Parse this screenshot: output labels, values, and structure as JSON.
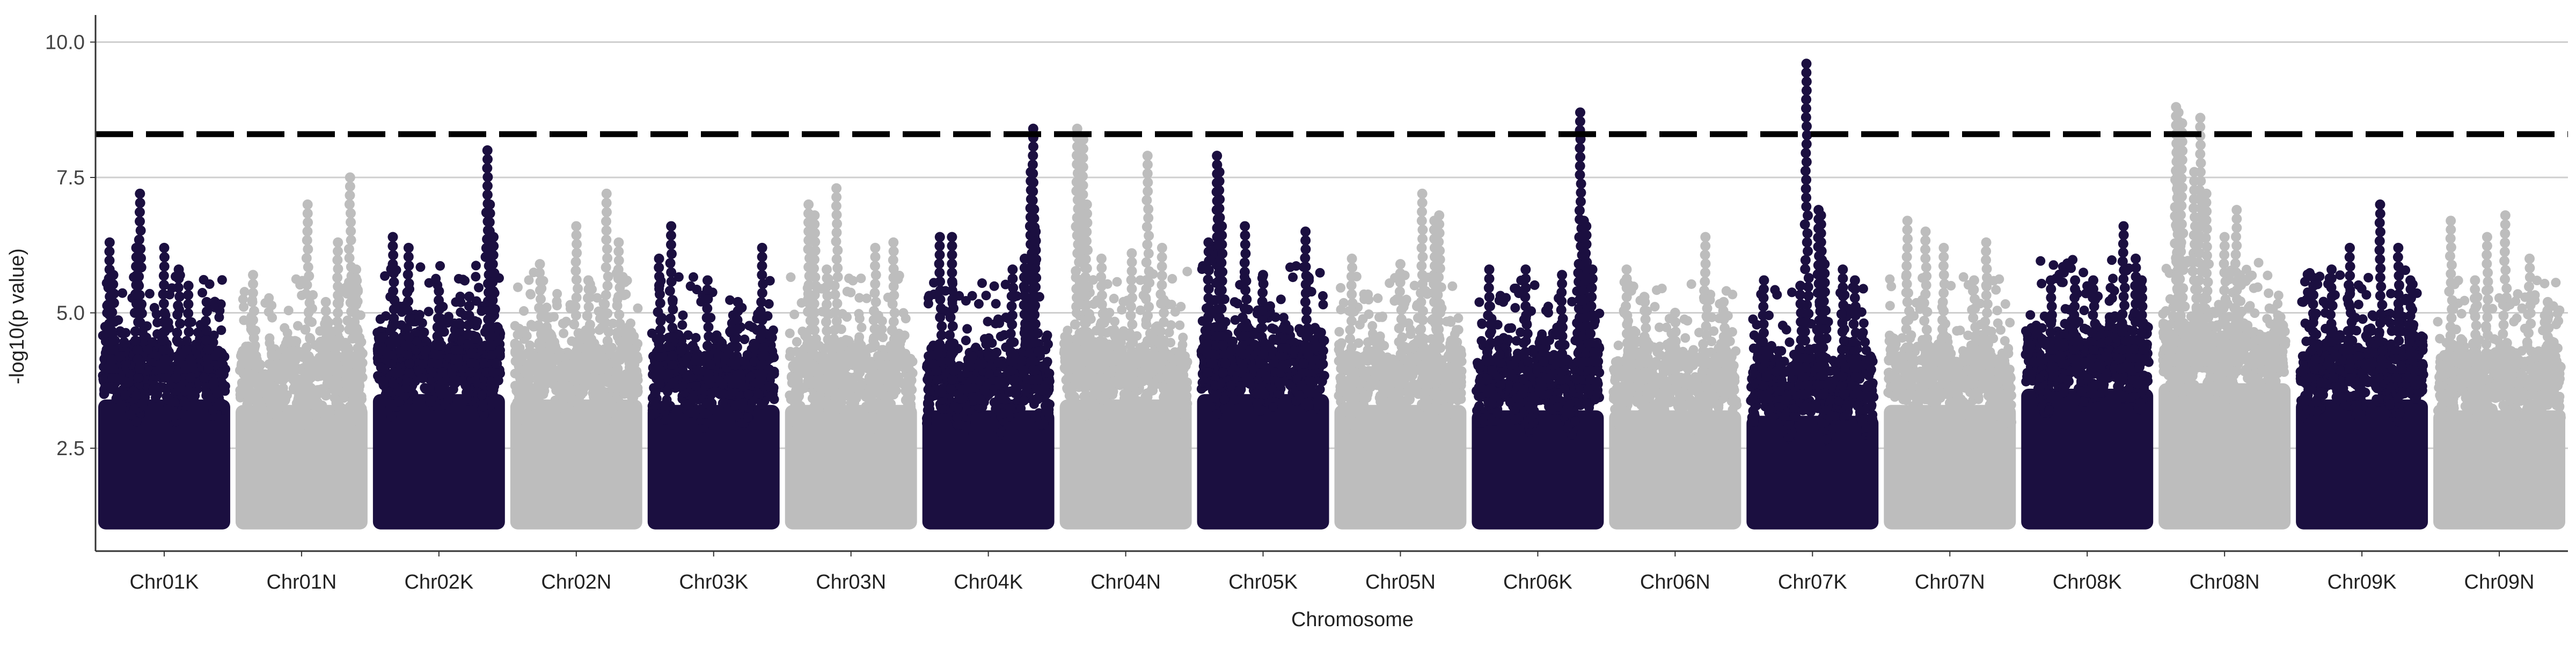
{
  "chart_data": {
    "type": "scatter",
    "title": "",
    "xlabel": "Chromosome",
    "ylabel": "-log10(p value)",
    "ylim": [
      0.6,
      10.5
    ],
    "yticks": [
      2.5,
      5.0,
      7.5,
      10.0
    ],
    "ytick_labels": [
      "2.5",
      "5.0",
      "7.5",
      "10.0"
    ],
    "grid": "horizontal-major",
    "legend": "none",
    "threshold": {
      "value": 8.3,
      "style": "dashed",
      "color": "#000000"
    },
    "colors": {
      "odd": "#1b0f40",
      "even": "#bdbdbd",
      "grid": "#cfcfcf",
      "axis": "#333333"
    },
    "categories": [
      "Chr01K",
      "Chr01N",
      "Chr02K",
      "Chr02N",
      "Chr03K",
      "Chr03N",
      "Chr04K",
      "Chr04N",
      "Chr05K",
      "Chr05N",
      "Chr06K",
      "Chr06N",
      "Chr07K",
      "Chr07N",
      "Chr08K",
      "Chr08N",
      "Chr09K",
      "Chr09N"
    ],
    "series": [
      {
        "chrom": "Chr01K",
        "color": "#1b0f40",
        "base_top": 3.8,
        "peaks": [
          [
            0.05,
            6.3
          ],
          [
            0.08,
            5.7
          ],
          [
            0.3,
            7.2
          ],
          [
            0.27,
            6.2
          ],
          [
            0.5,
            6.2
          ],
          [
            0.62,
            5.8
          ],
          [
            0.7,
            5.5
          ],
          [
            0.85,
            5.2
          ]
        ]
      },
      {
        "chrom": "Chr01N",
        "color": "#bdbdbd",
        "base_top": 3.7,
        "peaks": [
          [
            0.1,
            5.7
          ],
          [
            0.55,
            7.0
          ],
          [
            0.8,
            6.3
          ],
          [
            0.9,
            7.5
          ],
          [
            0.95,
            5.8
          ],
          [
            0.7,
            5.2
          ]
        ]
      },
      {
        "chrom": "Chr02K",
        "color": "#1b0f40",
        "base_top": 3.9,
        "peaks": [
          [
            0.12,
            6.4
          ],
          [
            0.25,
            6.2
          ],
          [
            0.5,
            5.4
          ],
          [
            0.75,
            5.3
          ],
          [
            0.9,
            8.0
          ],
          [
            0.92,
            7.0
          ],
          [
            0.95,
            6.4
          ]
        ]
      },
      {
        "chrom": "Chr02N",
        "color": "#bdbdbd",
        "base_top": 3.8,
        "peaks": [
          [
            0.2,
            5.9
          ],
          [
            0.5,
            6.6
          ],
          [
            0.75,
            7.2
          ],
          [
            0.85,
            6.3
          ],
          [
            0.6,
            5.6
          ]
        ]
      },
      {
        "chrom": "Chr03K",
        "color": "#1b0f40",
        "base_top": 3.7,
        "peaks": [
          [
            0.05,
            6.0
          ],
          [
            0.15,
            6.6
          ],
          [
            0.45,
            5.6
          ],
          [
            0.7,
            5.2
          ],
          [
            0.9,
            6.2
          ]
        ]
      },
      {
        "chrom": "Chr03N",
        "color": "#bdbdbd",
        "base_top": 3.7,
        "peaks": [
          [
            0.15,
            7.0
          ],
          [
            0.2,
            6.8
          ],
          [
            0.3,
            5.8
          ],
          [
            0.38,
            7.3
          ],
          [
            0.7,
            6.2
          ],
          [
            0.85,
            6.3
          ]
        ]
      },
      {
        "chrom": "Chr04K",
        "color": "#1b0f40",
        "base_top": 3.6,
        "peaks": [
          [
            0.1,
            6.4
          ],
          [
            0.2,
            6.4
          ],
          [
            0.7,
            5.8
          ],
          [
            0.8,
            6.0
          ],
          [
            0.85,
            7.6
          ],
          [
            0.87,
            8.4
          ],
          [
            0.89,
            6.5
          ]
        ]
      },
      {
        "chrom": "Chr04N",
        "color": "#bdbdbd",
        "base_top": 3.8,
        "peaks": [
          [
            0.1,
            8.4
          ],
          [
            0.15,
            8.2
          ],
          [
            0.18,
            7.0
          ],
          [
            0.3,
            6.0
          ],
          [
            0.55,
            6.1
          ],
          [
            0.68,
            7.9
          ],
          [
            0.8,
            6.2
          ]
        ]
      },
      {
        "chrom": "Chr05K",
        "color": "#1b0f40",
        "base_top": 3.9,
        "peaks": [
          [
            0.05,
            6.3
          ],
          [
            0.12,
            7.9
          ],
          [
            0.14,
            7.6
          ],
          [
            0.16,
            6.6
          ],
          [
            0.35,
            6.6
          ],
          [
            0.5,
            5.7
          ],
          [
            0.85,
            6.5
          ]
        ]
      },
      {
        "chrom": "Chr05N",
        "color": "#bdbdbd",
        "base_top": 3.7,
        "peaks": [
          [
            0.1,
            6.0
          ],
          [
            0.5,
            5.9
          ],
          [
            0.68,
            7.2
          ],
          [
            0.78,
            6.7
          ],
          [
            0.82,
            6.8
          ]
        ]
      },
      {
        "chrom": "Chr06K",
        "color": "#1b0f40",
        "base_top": 3.6,
        "peaks": [
          [
            0.1,
            5.8
          ],
          [
            0.4,
            5.8
          ],
          [
            0.7,
            5.7
          ],
          [
            0.85,
            8.7
          ],
          [
            0.88,
            6.7
          ],
          [
            0.9,
            6.6
          ],
          [
            0.95,
            5.8
          ]
        ]
      },
      {
        "chrom": "Chr06N",
        "color": "#bdbdbd",
        "base_top": 3.6,
        "peaks": [
          [
            0.1,
            5.8
          ],
          [
            0.25,
            5.2
          ],
          [
            0.5,
            5.0
          ],
          [
            0.75,
            6.4
          ],
          [
            0.9,
            5.2
          ]
        ]
      },
      {
        "chrom": "Chr07K",
        "color": "#1b0f40",
        "base_top": 3.5,
        "peaks": [
          [
            0.1,
            5.6
          ],
          [
            0.4,
            5.5
          ],
          [
            0.55,
            6.9
          ],
          [
            0.57,
            6.8
          ],
          [
            0.45,
            9.6
          ],
          [
            0.6,
            5.9
          ],
          [
            0.75,
            5.8
          ],
          [
            0.85,
            5.6
          ]
        ]
      },
      {
        "chrom": "Chr07N",
        "color": "#bdbdbd",
        "base_top": 3.7,
        "peaks": [
          [
            0.15,
            6.7
          ],
          [
            0.3,
            6.5
          ],
          [
            0.45,
            6.2
          ],
          [
            0.7,
            5.6
          ],
          [
            0.8,
            6.3
          ]
        ]
      },
      {
        "chrom": "Chr08K",
        "color": "#1b0f40",
        "base_top": 4.0,
        "peaks": [
          [
            0.2,
            5.6
          ],
          [
            0.4,
            5.6
          ],
          [
            0.55,
            5.6
          ],
          [
            0.8,
            6.6
          ],
          [
            0.9,
            6.0
          ],
          [
            0.95,
            5.6
          ]
        ]
      },
      {
        "chrom": "Chr08N",
        "color": "#bdbdbd",
        "base_top": 4.1,
        "peaks": [
          [
            0.1,
            8.8
          ],
          [
            0.12,
            8.7
          ],
          [
            0.15,
            8.5
          ],
          [
            0.25,
            7.6
          ],
          [
            0.3,
            8.6
          ],
          [
            0.35,
            7.2
          ],
          [
            0.5,
            6.4
          ],
          [
            0.6,
            6.9
          ]
        ]
      },
      {
        "chrom": "Chr09K",
        "color": "#1b0f40",
        "base_top": 3.8,
        "peaks": [
          [
            0.1,
            5.5
          ],
          [
            0.25,
            5.8
          ],
          [
            0.4,
            6.2
          ],
          [
            0.65,
            7.0
          ],
          [
            0.8,
            6.2
          ],
          [
            0.9,
            5.6
          ]
        ]
      },
      {
        "chrom": "Chr09N",
        "color": "#bdbdbd",
        "base_top": 3.6,
        "peaks": [
          [
            0.1,
            6.7
          ],
          [
            0.3,
            5.6
          ],
          [
            0.4,
            6.4
          ],
          [
            0.55,
            6.8
          ],
          [
            0.75,
            6.0
          ],
          [
            0.9,
            5.2
          ]
        ]
      }
    ]
  }
}
